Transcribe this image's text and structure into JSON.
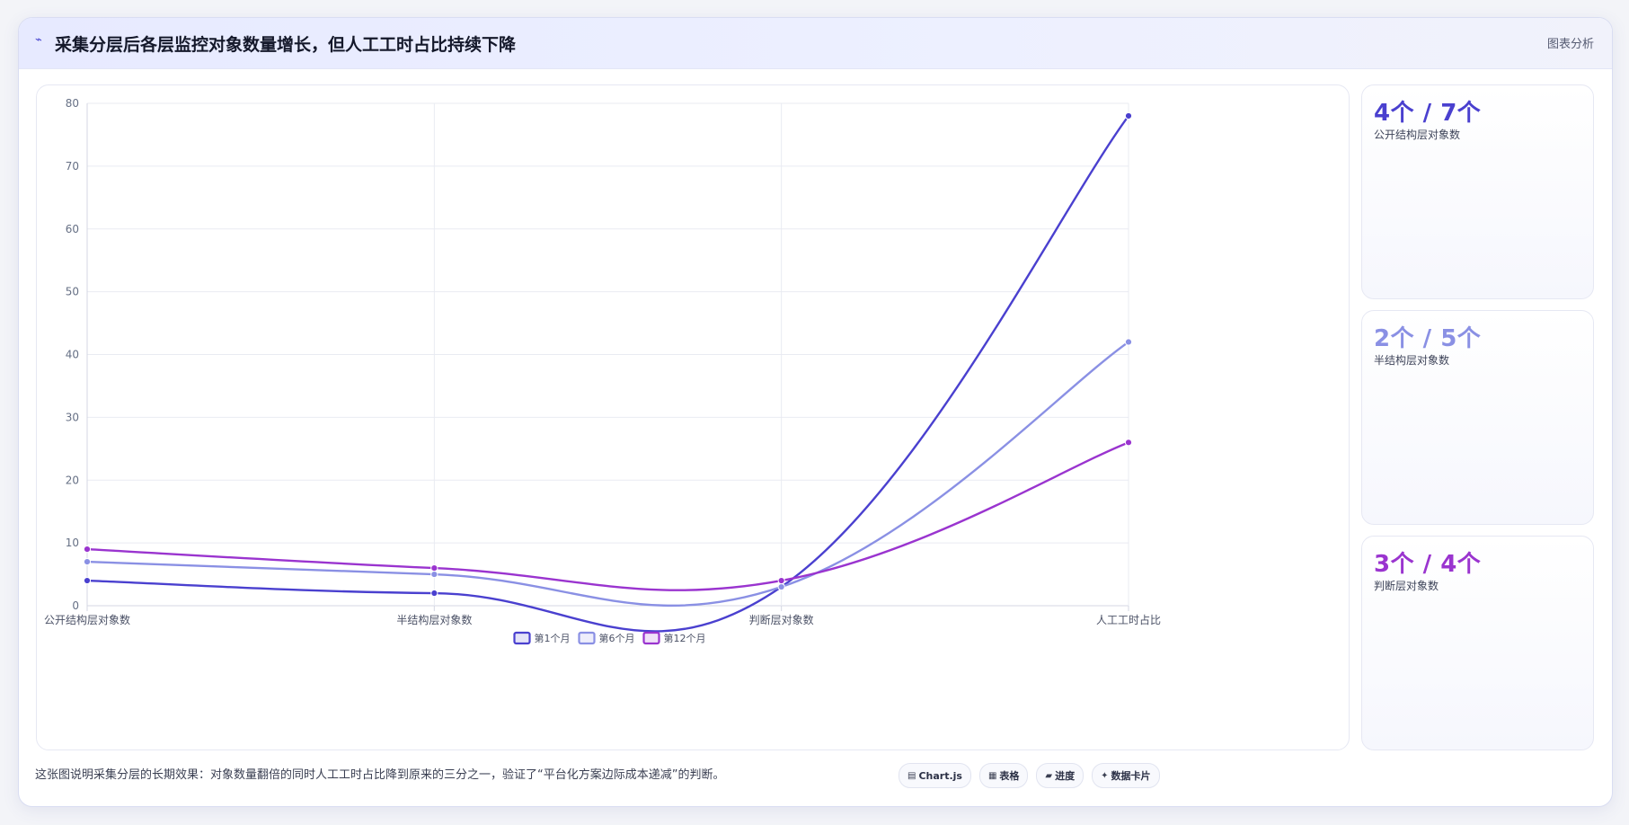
{
  "header": {
    "title": "采集分层后各层监控对象数量增长，但人工工时占比持续下降",
    "tag": "图表分析"
  },
  "chart_data": {
    "type": "line",
    "categories": [
      "公开结构层对象数",
      "半结构层对象数",
      "判断层对象数",
      "人工工时占比"
    ],
    "series": [
      {
        "name": "第1个月",
        "values": [
          4,
          2,
          3,
          78
        ],
        "color": "#4a40cf"
      },
      {
        "name": "第6个月",
        "values": [
          7,
          5,
          3,
          42
        ],
        "color": "#8a90e4"
      },
      {
        "name": "第12个月",
        "values": [
          9,
          6,
          4,
          26
        ],
        "color": "#9a34cf"
      }
    ],
    "ylim": [
      0,
      80
    ],
    "yticks": [
      0,
      10,
      20,
      30,
      40,
      50,
      60,
      70,
      80
    ],
    "grid": true,
    "legend": "bottom"
  },
  "stats": [
    {
      "value": "4个 / 7个",
      "label": "公开结构层对象数",
      "color": "#4a40cf"
    },
    {
      "value": "2个 / 5个",
      "label": "半结构层对象数",
      "color": "#8a90e4"
    },
    {
      "value": "3个 / 4个",
      "label": "判断层对象数",
      "color": "#9a34cf"
    }
  ],
  "footer": {
    "caption": "这张图说明采集分层的长期效果：对象数量翻倍的同时人工工时占比降到原来的三分之一，验证了“平台化方案边际成本递减”的判断。",
    "buttons": [
      {
        "label": "Chart.js",
        "icon": "▤"
      },
      {
        "label": "表格",
        "icon": "▦"
      },
      {
        "label": "进度",
        "icon": "▰"
      },
      {
        "label": "数据卡片",
        "icon": "✦"
      }
    ]
  }
}
